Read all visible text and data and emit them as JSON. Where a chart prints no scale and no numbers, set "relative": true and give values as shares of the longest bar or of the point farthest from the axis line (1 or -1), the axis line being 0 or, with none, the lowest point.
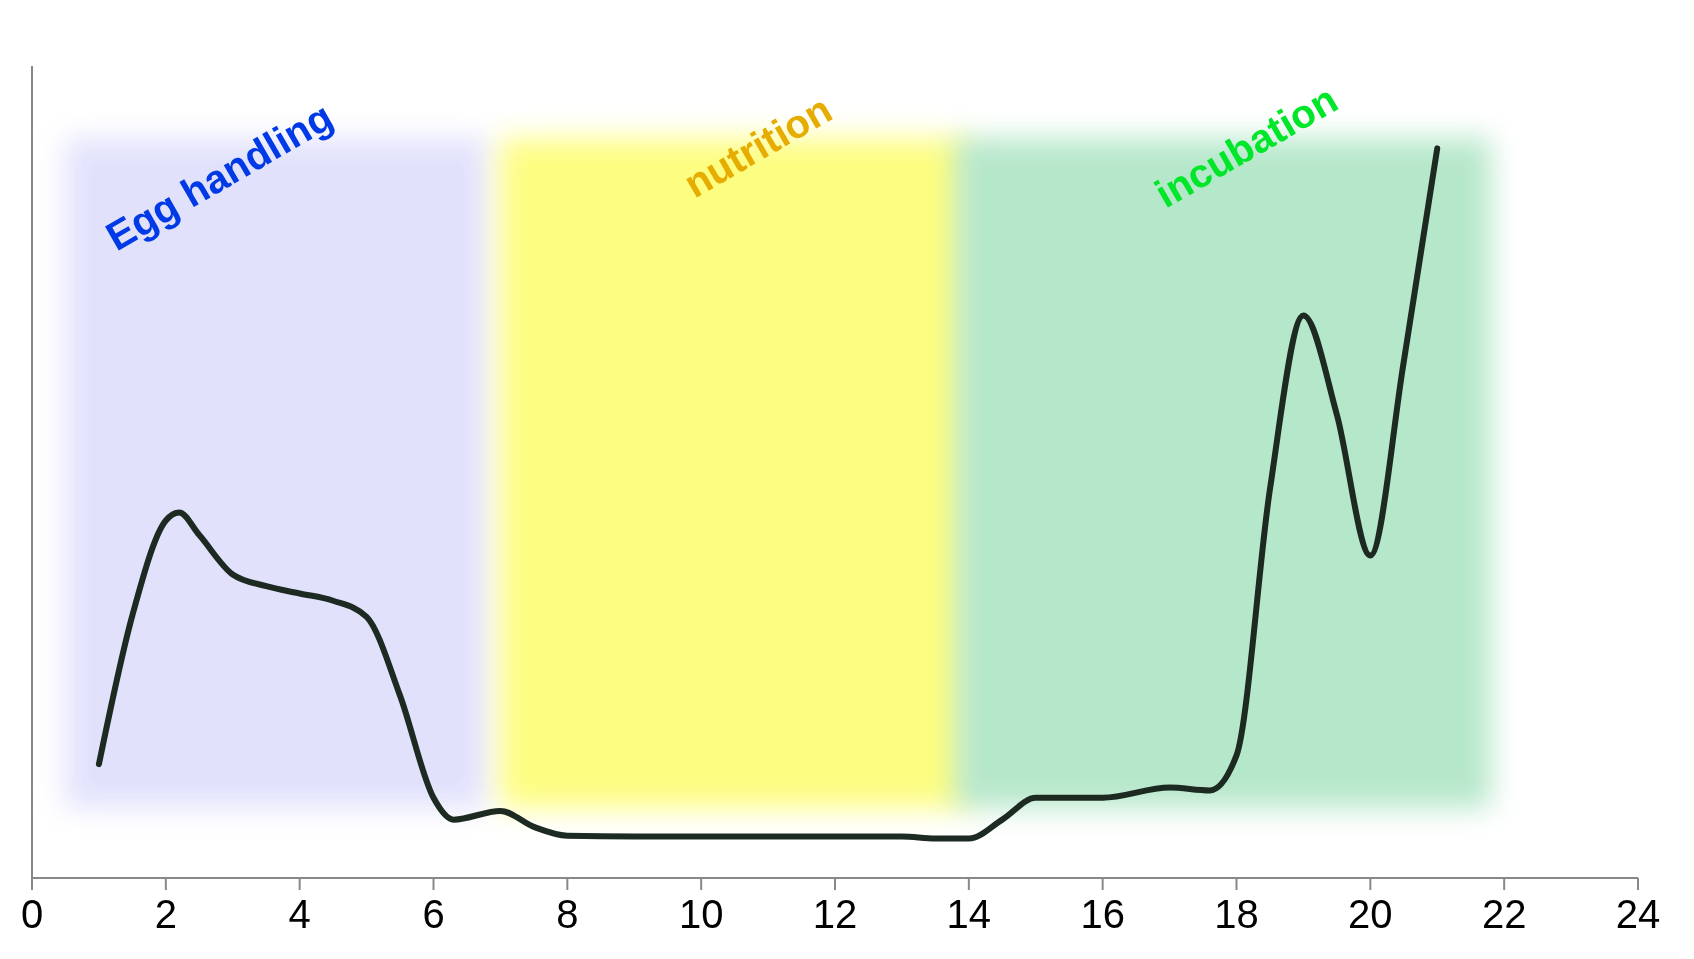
{
  "chart_data": {
    "type": "line",
    "relative": true,
    "xlim": [
      0,
      24
    ],
    "xticks": [
      0,
      2,
      4,
      6,
      8,
      10,
      12,
      14,
      16,
      18,
      20,
      22,
      24
    ],
    "series": [
      {
        "color": "#1c2a22",
        "x": [
          1,
          1.5,
          2,
          2.2,
          2.5,
          3,
          3.5,
          4,
          4.5,
          5,
          5.5,
          6,
          6.3,
          7,
          7.5,
          8,
          9,
          10,
          11,
          12,
          13,
          13.5,
          14,
          14.5,
          15,
          16,
          17,
          17.6,
          18,
          18.5,
          19,
          19.5,
          20,
          20.5,
          21
        ],
        "values": [
          0.156,
          0.36,
          0.49,
          0.501,
          0.47,
          0.416,
          0.4,
          0.39,
          0.38,
          0.358,
          0.25,
          0.11,
          0.08,
          0.092,
          0.07,
          0.058,
          0.057,
          0.057,
          0.057,
          0.057,
          0.057,
          0.054,
          0.054,
          0.08,
          0.11,
          0.11,
          0.124,
          0.12,
          0.168,
          0.533,
          0.771,
          0.635,
          0.442,
          0.708,
          1.0
        ]
      }
    ],
    "bands": [
      {
        "axis": "x",
        "from": 0.5,
        "to": 6.8,
        "label": "Egg handling",
        "color": "#e0e0fc"
      },
      {
        "axis": "x",
        "from": 7,
        "to": 14,
        "label": "nutrition",
        "color": "#fdfd7a"
      },
      {
        "axis": "x",
        "from": 13.8,
        "to": 21.8,
        "label": "incubation",
        "color": "#b2e6c8"
      }
    ]
  }
}
